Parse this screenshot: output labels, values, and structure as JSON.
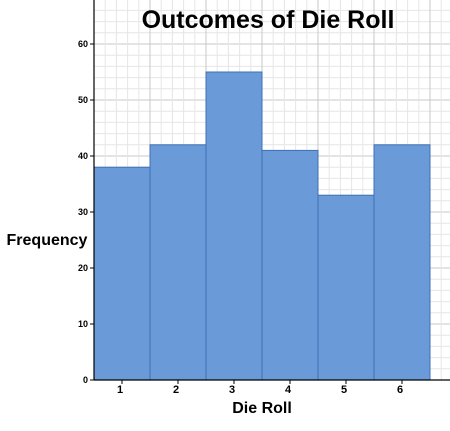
{
  "chart_data": {
    "type": "bar",
    "title": "Outcomes of Die Roll",
    "xlabel": "Die Roll",
    "ylabel": "Frequency",
    "categories": [
      "1",
      "2",
      "3",
      "4",
      "5",
      "6"
    ],
    "values": [
      38,
      42,
      55,
      41,
      33,
      42
    ],
    "ylim": [
      0,
      60
    ],
    "yticks": [
      0,
      10,
      20,
      30,
      40,
      50,
      60
    ],
    "grid": true,
    "bar_color": "#6a9bd8",
    "bar_edge_color": "#3f6fb5"
  }
}
